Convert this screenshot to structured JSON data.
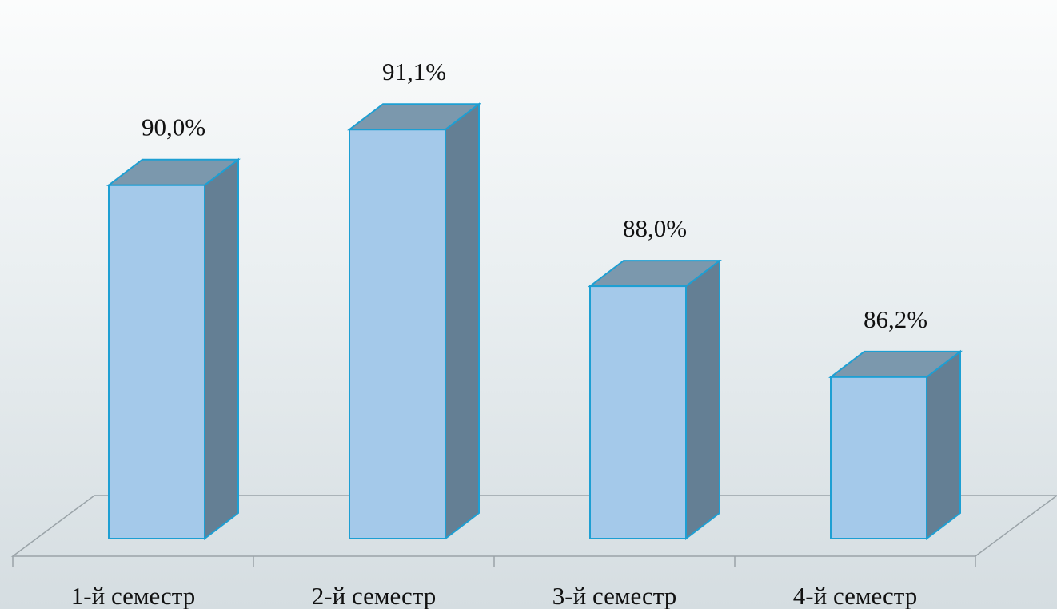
{
  "chart_data": {
    "type": "bar",
    "style": "3d-column",
    "categories": [
      "1-й семестр",
      "2-й семестр",
      "3-й семестр",
      "4-й семестр"
    ],
    "values": [
      90.0,
      91.1,
      88.0,
      86.2
    ],
    "value_labels": [
      "90,0%",
      "91,1%",
      "88,0%",
      "86,2%"
    ],
    "title": "",
    "xlabel": "",
    "ylabel": "",
    "ylim": [
      83.0,
      91.8
    ],
    "grid": false,
    "legend": "none",
    "colors": {
      "front": "#a4c9ea",
      "top": "#7b98ad",
      "side": "#647f94",
      "edge": "#1d9fd3"
    }
  }
}
